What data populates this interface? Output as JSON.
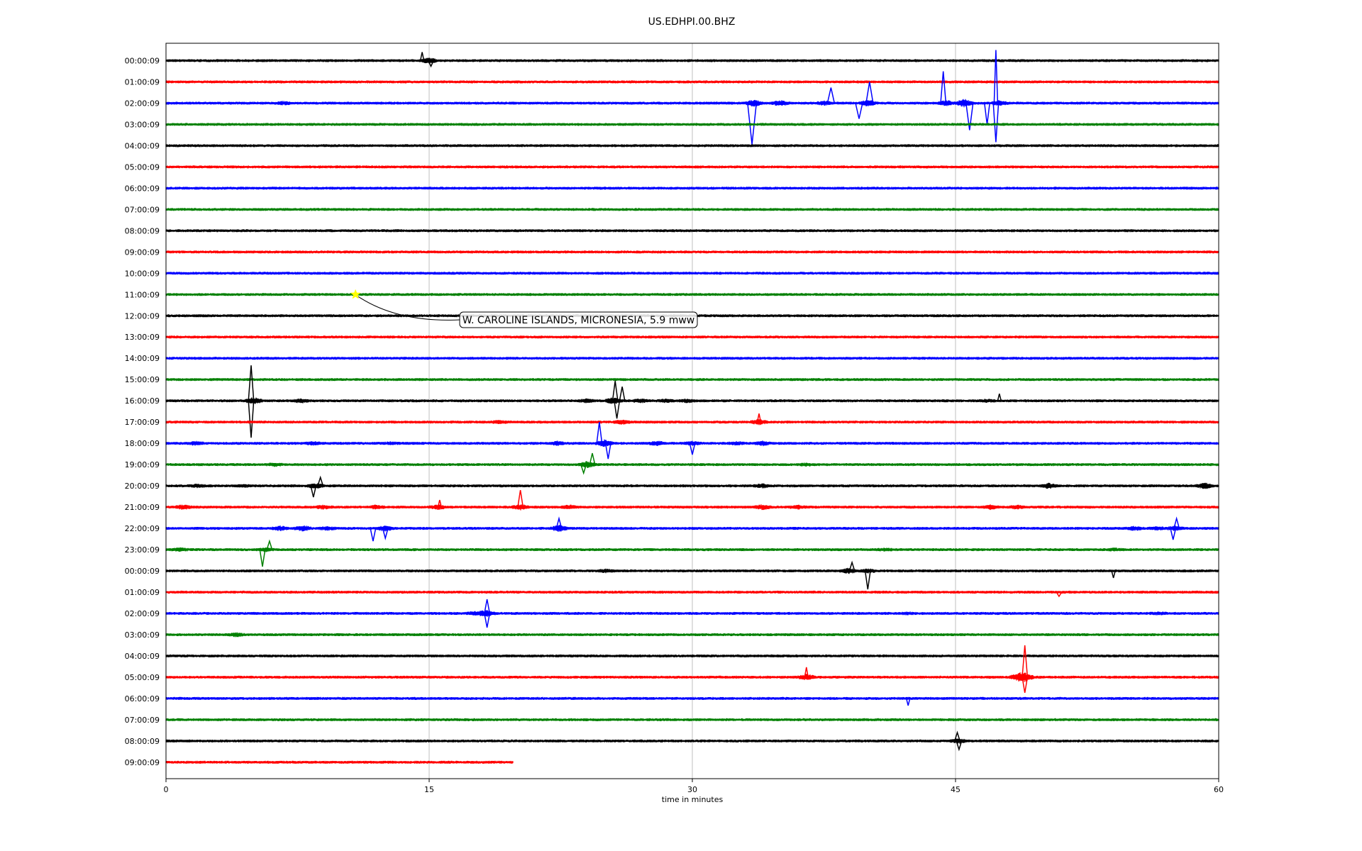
{
  "chart_data": {
    "type": "line",
    "title": "US.EDHPI.00.BHZ",
    "xlabel": "time in minutes",
    "ylabel": "",
    "xlim": [
      0,
      60
    ],
    "xticks": [
      0,
      15,
      30,
      45,
      60
    ],
    "grid": "vertical",
    "series_colors": [
      "#000000",
      "#ff0000",
      "#0000ff",
      "#008000"
    ],
    "rows": [
      {
        "label": "00:00:09",
        "end": 60,
        "bursts": [
          [
            15,
            2.2
          ]
        ],
        "spikes": [
          [
            14.6,
            12,
            0.2
          ],
          [
            15.1,
            -8,
            0.3
          ]
        ]
      },
      {
        "label": "01:00:09",
        "end": 60,
        "bursts": [],
        "spikes": []
      },
      {
        "label": "02:00:09",
        "end": 60,
        "bursts": [
          [
            6.7,
            1.6
          ],
          [
            33.5,
            2.6
          ],
          [
            35,
            2.2
          ],
          [
            37.5,
            1.8
          ],
          [
            40,
            2.5
          ],
          [
            44.5,
            2.2
          ],
          [
            45.5,
            3
          ],
          [
            47.5,
            2.2
          ]
        ],
        "spikes": [
          [
            33.4,
            -58,
            0.5
          ],
          [
            37.9,
            22,
            0.4
          ],
          [
            39.5,
            -22,
            0.4
          ],
          [
            40.1,
            30,
            0.4
          ],
          [
            44.3,
            45,
            0.3
          ],
          [
            45.8,
            -38,
            0.4
          ],
          [
            46.8,
            -30,
            0.3
          ],
          [
            47.3,
            75,
            0.2
          ],
          [
            47.3,
            -55,
            0.3
          ]
        ]
      },
      {
        "label": "03:00:09",
        "end": 60,
        "bursts": [],
        "spikes": []
      },
      {
        "label": "04:00:09",
        "end": 60,
        "bursts": [],
        "spikes": []
      },
      {
        "label": "05:00:09",
        "end": 60,
        "bursts": [],
        "spikes": []
      },
      {
        "label": "06:00:09",
        "end": 60,
        "bursts": [],
        "spikes": []
      },
      {
        "label": "07:00:09",
        "end": 60,
        "bursts": [],
        "spikes": []
      },
      {
        "label": "08:00:09",
        "end": 60,
        "bursts": [],
        "spikes": []
      },
      {
        "label": "09:00:09",
        "end": 60,
        "bursts": [],
        "spikes": []
      },
      {
        "label": "10:00:09",
        "end": 60,
        "bursts": [],
        "spikes": []
      },
      {
        "label": "11:00:09",
        "end": 60,
        "bursts": [],
        "spikes": []
      },
      {
        "label": "12:00:09",
        "end": 60,
        "bursts": [],
        "spikes": []
      },
      {
        "label": "13:00:09",
        "end": 60,
        "bursts": [],
        "spikes": []
      },
      {
        "label": "14:00:09",
        "end": 60,
        "bursts": [],
        "spikes": []
      },
      {
        "label": "15:00:09",
        "end": 60,
        "bursts": [],
        "spikes": []
      },
      {
        "label": "16:00:09",
        "end": 60,
        "bursts": [
          [
            5,
            2.6
          ],
          [
            7.7,
            1.8
          ],
          [
            24,
            1.8
          ],
          [
            25.5,
            2.5
          ],
          [
            27,
            1.8
          ],
          [
            28.5,
            1.6
          ],
          [
            29.7,
            1.6
          ],
          [
            46.8,
            1.4
          ]
        ],
        "spikes": [
          [
            4.85,
            50,
            0.3
          ],
          [
            4.85,
            -52,
            0.3
          ],
          [
            25.6,
            28,
            0.3
          ],
          [
            25.7,
            -25,
            0.3
          ],
          [
            26,
            20,
            0.3
          ],
          [
            47.5,
            10,
            0.2
          ]
        ]
      },
      {
        "label": "17:00:09",
        "end": 60,
        "bursts": [
          [
            19,
            1.6
          ],
          [
            26,
            2
          ],
          [
            33.8,
            2.2
          ]
        ],
        "spikes": [
          [
            33.8,
            12,
            0.2
          ]
        ]
      },
      {
        "label": "18:00:09",
        "end": 60,
        "bursts": [
          [
            1.7,
            1.8
          ],
          [
            8.4,
            1.6
          ],
          [
            12.8,
            1.4
          ],
          [
            22.3,
            1.8
          ],
          [
            25,
            2.8
          ],
          [
            28,
            2
          ],
          [
            30,
            1.8
          ],
          [
            32.5,
            1.6
          ],
          [
            34,
            2
          ]
        ],
        "spikes": [
          [
            24.7,
            30,
            0.3
          ],
          [
            25.2,
            -22,
            0.3
          ],
          [
            30,
            -16,
            0.3
          ]
        ]
      },
      {
        "label": "19:00:09",
        "end": 60,
        "bursts": [
          [
            6.2,
            1.6
          ],
          [
            24,
            2.6
          ],
          [
            36.5,
            1.4
          ]
        ],
        "spikes": [
          [
            24.3,
            16,
            0.3
          ],
          [
            23.8,
            -12,
            0.3
          ]
        ]
      },
      {
        "label": "20:00:09",
        "end": 60,
        "bursts": [
          [
            1.8,
            1.6
          ],
          [
            4.5,
            1.4
          ],
          [
            8.5,
            2.2
          ],
          [
            34,
            1.8
          ],
          [
            50.3,
            2.2
          ],
          [
            59.2,
            2.4
          ]
        ],
        "spikes": [
          [
            8.4,
            -16,
            0.3
          ],
          [
            8.8,
            12,
            0.3
          ]
        ]
      },
      {
        "label": "21:00:09",
        "end": 60,
        "bursts": [
          [
            1,
            2
          ],
          [
            9,
            1.8
          ],
          [
            12,
            1.8
          ],
          [
            15.5,
            2
          ],
          [
            20.2,
            2.2
          ],
          [
            23,
            1.8
          ],
          [
            34,
            2
          ],
          [
            36,
            1.8
          ],
          [
            47,
            2
          ],
          [
            48.5,
            1.8
          ]
        ],
        "spikes": [
          [
            15.6,
            10,
            0.2
          ],
          [
            20.2,
            24,
            0.3
          ]
        ]
      },
      {
        "label": "22:00:09",
        "end": 60,
        "bursts": [
          [
            6.5,
            2
          ],
          [
            7.8,
            2.2
          ],
          [
            9.2,
            1.8
          ],
          [
            12.5,
            2.2
          ],
          [
            22.4,
            2.5
          ],
          [
            55.2,
            1.8
          ],
          [
            56.5,
            1.6
          ],
          [
            57.5,
            2
          ]
        ],
        "spikes": [
          [
            11.8,
            -18,
            0.3
          ],
          [
            12.5,
            -14,
            0.3
          ],
          [
            22.4,
            14,
            0.3
          ],
          [
            57.4,
            -16,
            0.3
          ],
          [
            57.6,
            14,
            0.3
          ]
        ]
      },
      {
        "label": "23:00:09",
        "end": 60,
        "bursts": [
          [
            0.8,
            1.6
          ],
          [
            5.7,
            1.8
          ],
          [
            41,
            1.4
          ],
          [
            54.1,
            1.4
          ]
        ],
        "spikes": [
          [
            5.5,
            -24,
            0.3
          ],
          [
            5.9,
            12,
            0.3
          ]
        ]
      },
      {
        "label": "00:00:09",
        "end": 60,
        "bursts": [
          [
            25.1,
            1.6
          ],
          [
            38.9,
            2.2
          ],
          [
            40,
            1.8
          ]
        ],
        "spikes": [
          [
            39.1,
            12,
            0.3
          ],
          [
            40,
            -26,
            0.3
          ],
          [
            54,
            -10,
            0.2
          ]
        ]
      },
      {
        "label": "01:00:09",
        "end": 60,
        "bursts": [],
        "spikes": [
          [
            50.9,
            -6,
            0.3
          ]
        ]
      },
      {
        "label": "02:00:09",
        "end": 60,
        "bursts": [
          [
            17.6,
            1.8
          ],
          [
            18.3,
            2.4
          ],
          [
            42.3,
            1.4
          ],
          [
            56.6,
            1.4
          ]
        ],
        "spikes": [
          [
            18.3,
            20,
            0.3
          ],
          [
            18.3,
            -20,
            0.3
          ]
        ]
      },
      {
        "label": "03:00:09",
        "end": 60,
        "bursts": [
          [
            4,
            1.8
          ]
        ],
        "spikes": []
      },
      {
        "label": "04:00:09",
        "end": 60,
        "bursts": [],
        "spikes": []
      },
      {
        "label": "05:00:09",
        "end": 60,
        "bursts": [
          [
            36.5,
            2.4
          ],
          [
            48.5,
            2.4
          ],
          [
            49,
            2.8
          ]
        ],
        "spikes": [
          [
            48.95,
            45,
            0.3
          ],
          [
            48.95,
            -22,
            0.3
          ],
          [
            36.5,
            14,
            0.2
          ]
        ]
      },
      {
        "label": "06:00:09",
        "end": 60,
        "bursts": [],
        "spikes": [
          [
            42.3,
            -10,
            0.2
          ]
        ]
      },
      {
        "label": "07:00:09",
        "end": 60,
        "bursts": [],
        "spikes": []
      },
      {
        "label": "08:00:09",
        "end": 60,
        "bursts": [
          [
            45.2,
            2
          ]
        ],
        "spikes": [
          [
            45.1,
            12,
            0.3
          ],
          [
            45.2,
            -12,
            0.3
          ]
        ]
      },
      {
        "label": "09:00:09",
        "end": 19.8,
        "bursts": [],
        "spikes": []
      }
    ],
    "annotations": [
      {
        "text": "W. CAROLINE ISLANDS, MICRONESIA, 5.9 mww",
        "row": 11,
        "x": 10.8,
        "marker_color": "#ffff00"
      }
    ]
  }
}
